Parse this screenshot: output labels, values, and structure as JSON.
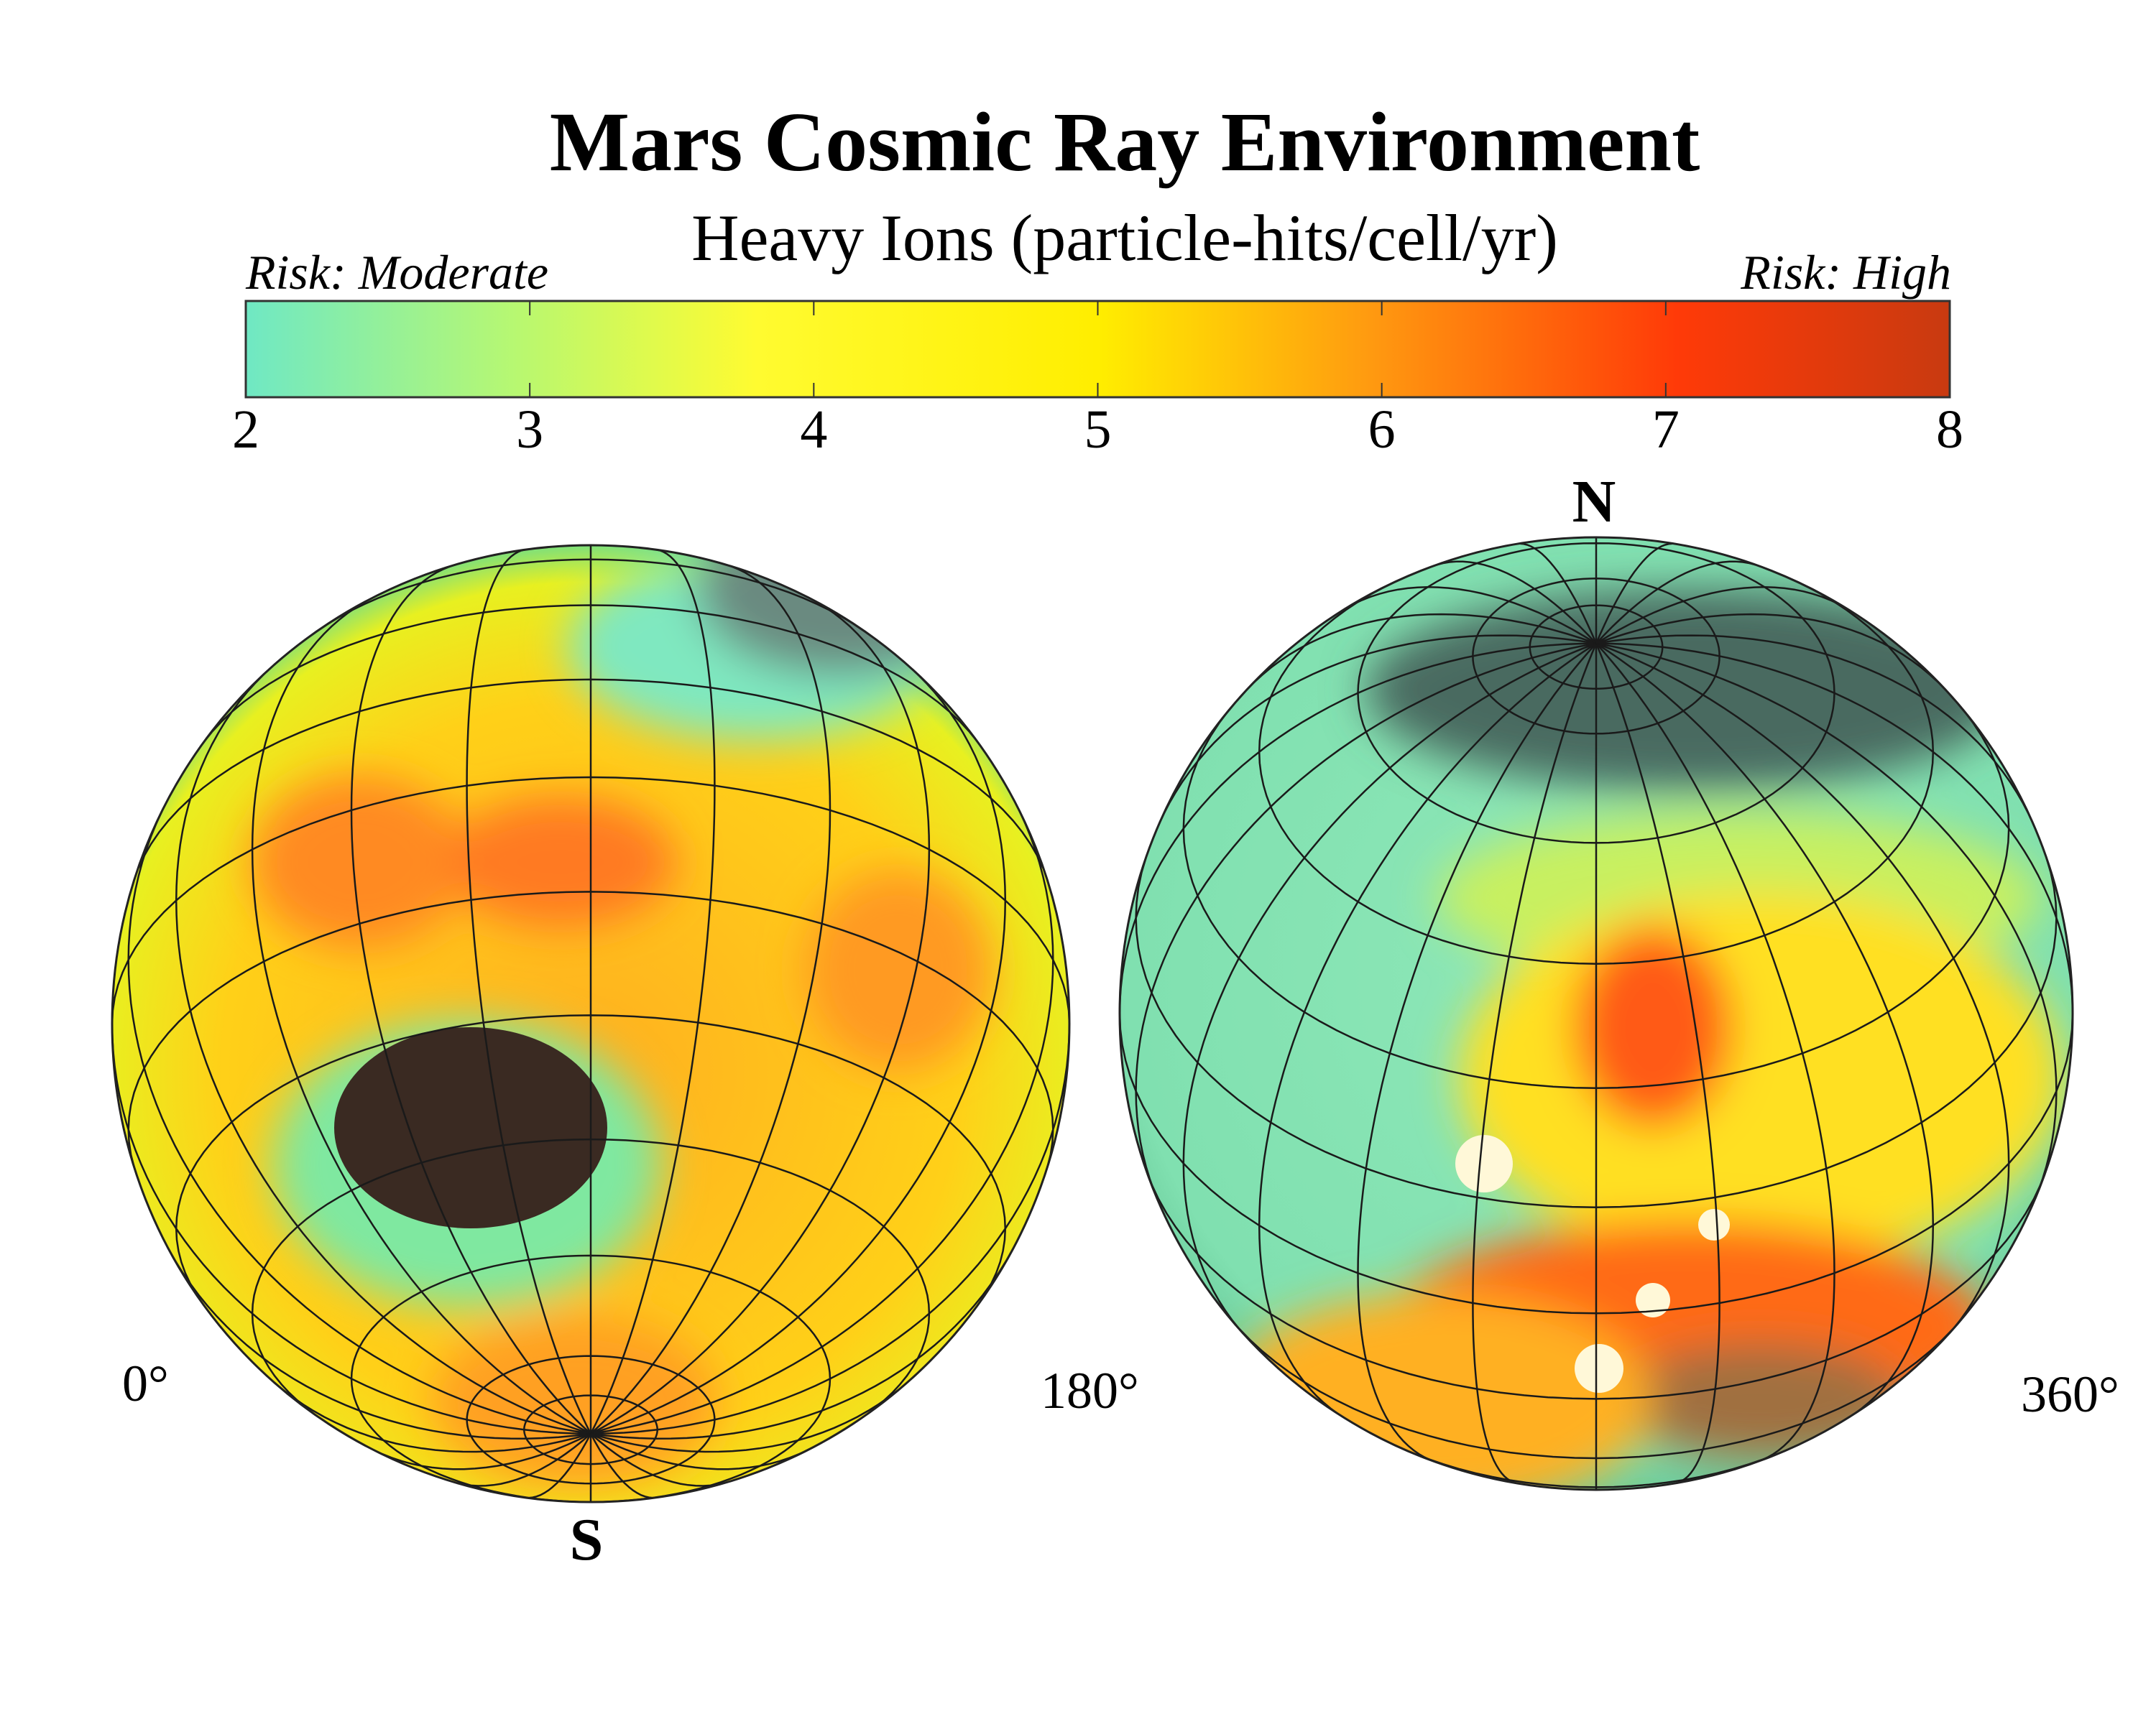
{
  "title": "Mars Cosmic Ray Environment",
  "subtitle": "Heavy Ions (particle-hits/cell/yr)",
  "colorbar": {
    "label_low": "Risk: Moderate",
    "label_high": "Risk: High",
    "ticks": [
      "2",
      "3",
      "4",
      "5",
      "6",
      "7",
      "8"
    ],
    "range": [
      2,
      8
    ],
    "colors": [
      "#6fe8c4",
      "#b8f870",
      "#fffb20",
      "#ffee00",
      "#ff9a10",
      "#ff3a08",
      "#c83a10"
    ]
  },
  "globes": {
    "left": {
      "pole_label": "S",
      "lon_start": "0°",
      "lon_end": "180°"
    },
    "right": {
      "pole_label": "N",
      "lon_end": "360°"
    }
  }
}
